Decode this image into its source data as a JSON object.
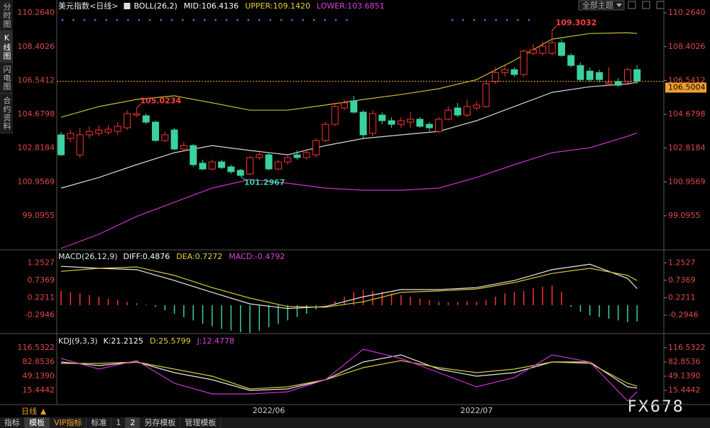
{
  "ui": {
    "side_tabs": [
      "分时图",
      "K线图",
      "闪电图",
      "合约资料"
    ],
    "theme_button": "全部主题",
    "period": "日线",
    "toolbar": [
      "指标",
      "模板",
      "VIP指标",
      "标准",
      "1",
      "2",
      "另存模板",
      "管理模板"
    ],
    "watermark": "FX678"
  },
  "chart_data": [
    {
      "type": "candlestick",
      "title": "美元指数<日线>",
      "legend": [
        {
          "text": "BOLL(26,2)",
          "color": "#ffffff"
        },
        {
          "text": "MID:106.4136",
          "color": "#ffffff"
        },
        {
          "text": "UPPER:109.1420",
          "color": "#e8d23a"
        },
        {
          "text": "LOWER:103.6851",
          "color": "#e040e0"
        }
      ],
      "up_color": "#ff3232",
      "down_color": "#3ad2a0",
      "open": [
        103.55,
        103.35,
        102.45,
        103.55,
        103.63,
        103.7,
        103.74,
        103.94,
        104.64,
        104.6,
        104.25,
        103.24,
        103.82,
        102.77,
        102.96,
        101.99,
        101.67,
        102.06,
        101.79,
        101.6,
        101.4,
        102.3,
        102.45,
        101.67,
        102.06,
        102.45,
        102.3,
        102.45,
        103.24,
        104.13,
        105.03,
        105.42,
        104.8,
        103.63,
        104.64,
        104.33,
        104.13,
        104.25,
        104.41,
        104.13,
        103.74,
        104.41,
        105.03,
        104.64,
        105.03,
        105.11,
        106.48,
        106.98,
        107.14,
        106.87,
        108.04,
        108.04,
        108.04,
        108.62,
        107.92,
        107.37,
        107.06,
        106.98,
        106.36,
        106.48,
        106.48,
        107.14
      ],
      "close": [
        102.45,
        103.63,
        103.55,
        103.74,
        103.82,
        103.86,
        104.02,
        104.72,
        104.72,
        104.25,
        103.24,
        103.55,
        102.77,
        102.96,
        101.91,
        101.67,
        102.06,
        101.75,
        101.52,
        101.32,
        102.3,
        102.45,
        101.67,
        102.06,
        102.3,
        102.3,
        102.57,
        103.24,
        104.13,
        105.11,
        105.31,
        104.8,
        103.55,
        104.72,
        104.33,
        104.13,
        104.33,
        104.41,
        104.02,
        103.94,
        104.41,
        104.91,
        104.64,
        105.11,
        105.19,
        106.36,
        106.98,
        107.14,
        106.87,
        108.16,
        108.23,
        108.43,
        108.62,
        107.92,
        107.37,
        106.59,
        106.59,
        106.59,
        106.44,
        106.28,
        107.14,
        106.5
      ],
      "high": [
        103.7,
        103.82,
        103.94,
        104.02,
        104.06,
        104.09,
        104.25,
        104.91,
        105.02,
        104.72,
        104.33,
        103.74,
        103.94,
        103.16,
        103.04,
        102.18,
        102.18,
        102.18,
        101.91,
        101.67,
        102.38,
        102.57,
        102.57,
        102.18,
        102.45,
        102.69,
        102.77,
        103.35,
        104.25,
        105.31,
        105.5,
        105.7,
        104.91,
        104.91,
        104.8,
        104.52,
        104.52,
        104.8,
        104.52,
        104.25,
        104.52,
        105.11,
        105.31,
        105.5,
        105.42,
        106.59,
        107.26,
        107.37,
        107.26,
        108.23,
        108.55,
        108.7,
        109.3,
        108.82,
        108.04,
        107.53,
        107.26,
        107.14,
        107.26,
        106.67,
        107.26,
        107.37
      ],
      "low": [
        102.38,
        103.16,
        102.3,
        103.35,
        103.47,
        103.55,
        103.55,
        103.82,
        104.52,
        104.13,
        103.16,
        103.16,
        102.69,
        102.69,
        101.79,
        101.6,
        101.6,
        101.67,
        101.4,
        101.3,
        101.32,
        102.18,
        101.6,
        101.6,
        101.91,
        102.18,
        102.18,
        102.3,
        103.16,
        104.02,
        104.91,
        104.72,
        103.35,
        103.47,
        104.13,
        103.94,
        103.94,
        103.94,
        103.94,
        103.74,
        103.63,
        104.33,
        104.52,
        104.52,
        104.91,
        105.03,
        106.36,
        106.75,
        106.75,
        106.75,
        107.92,
        107.92,
        107.92,
        107.84,
        107.26,
        106.48,
        106.48,
        106.44,
        106.28,
        106.2,
        106.28,
        106.36
      ],
      "series": [
        {
          "color": "#d8d8d8",
          "x": [
            0,
            4,
            8,
            12,
            16,
            20,
            24,
            28,
            32,
            36,
            40,
            44,
            48,
            52,
            56,
            60,
            61
          ],
          "values": [
            100.62,
            101.2,
            101.91,
            102.57,
            102.96,
            102.69,
            102.45,
            102.96,
            103.35,
            103.55,
            103.74,
            104.33,
            105.11,
            105.89,
            106.2,
            106.36,
            106.44
          ]
        },
        {
          "color": "#c8be30",
          "x": [
            0,
            4,
            8,
            12,
            16,
            20,
            24,
            28,
            32,
            36,
            40,
            44,
            48,
            52,
            56,
            60,
            61
          ],
          "values": [
            104.52,
            105.11,
            105.5,
            105.7,
            105.31,
            104.91,
            104.91,
            105.19,
            105.5,
            105.77,
            106.09,
            106.59,
            107.65,
            108.82,
            109.13,
            109.17,
            109.13
          ]
        },
        {
          "color": "#d030d0",
          "x": [
            0,
            4,
            8,
            12,
            16,
            20,
            24,
            28,
            32,
            36,
            40,
            44,
            48,
            52,
            56,
            60,
            61
          ],
          "values": [
            97.3,
            98.08,
            99.06,
            99.84,
            100.62,
            101.09,
            100.89,
            100.62,
            100.5,
            100.5,
            100.62,
            101.2,
            101.91,
            102.57,
            102.84,
            103.47,
            103.66
          ]
        }
      ],
      "annotations": [
        {
          "index": 8,
          "value": 105.0234
        },
        {
          "index": 19,
          "value": 101.2967
        },
        {
          "index": 52,
          "value": 109.3032
        }
      ],
      "last_price": 106.5004,
      "ylim": [
        97.22,
        110.66
      ],
      "yticks": [
        {
          "value": 110.264,
          "label": "110.2640"
        },
        108.4026,
        106.5412,
        104.6798,
        102.8184,
        100.9569,
        99.0955
      ]
    },
    {
      "type": "bar",
      "title": "MACD(26,12,9)",
      "legend": [
        {
          "text": "DIFF:0.4876",
          "color": "#ffffff"
        },
        {
          "text": "DEA:0.7272",
          "color": "#e8d23a"
        },
        {
          "text": "MACD:-0.4792",
          "color": "#e040e0"
        }
      ],
      "up_color": "#ff3232",
      "down_color": "#3ad2a0",
      "values": [
        0.42,
        0.38,
        0.35,
        0.3,
        0.25,
        0.2,
        0.15,
        0.1,
        0.06,
        0.02,
        -0.05,
        -0.15,
        -0.25,
        -0.35,
        -0.45,
        -0.55,
        -0.62,
        -0.7,
        -0.75,
        -0.8,
        -0.82,
        -0.75,
        -0.65,
        -0.55,
        -0.45,
        -0.35,
        -0.25,
        -0.12,
        0.02,
        0.12,
        0.25,
        0.4,
        0.45,
        0.42,
        0.4,
        0.35,
        0.3,
        0.25,
        0.2,
        0.15,
        0.1,
        0.08,
        0.1,
        0.12,
        0.1,
        0.15,
        0.25,
        0.35,
        0.4,
        0.42,
        0.5,
        0.55,
        0.58,
        0.4,
        -0.05,
        -0.2,
        -0.3,
        -0.35,
        -0.4,
        -0.45,
        -0.5,
        -0.48
      ],
      "series": [
        {
          "color": "#e8e8e8",
          "x": [
            0,
            4,
            8,
            12,
            16,
            20,
            24,
            28,
            32,
            36,
            40,
            44,
            48,
            52,
            56,
            60,
            61
          ],
          "values": [
            1.15,
            1.09,
            1.05,
            0.73,
            0.38,
            0.04,
            -0.1,
            -0.04,
            0.25,
            0.46,
            0.46,
            0.52,
            0.73,
            1.05,
            1.21,
            0.79,
            0.49
          ]
        },
        {
          "color": "#d8c830",
          "x": [
            0,
            4,
            8,
            12,
            16,
            20,
            24,
            28,
            32,
            36,
            40,
            44,
            48,
            52,
            56,
            60,
            61
          ],
          "values": [
            1.0,
            1.09,
            1.13,
            0.88,
            0.52,
            0.21,
            -0.04,
            -0.06,
            0.1,
            0.38,
            0.42,
            0.48,
            0.67,
            0.94,
            1.09,
            0.88,
            0.73
          ]
        }
      ],
      "ylim": [
        -0.84,
        1.51
      ],
      "yticks": [
        1.2527,
        0.7369,
        0.2211,
        -0.2946
      ]
    },
    {
      "type": "line",
      "title": "KDJ(9,3,3)",
      "legend": [
        {
          "text": "K:21.2125",
          "color": "#ffffff"
        },
        {
          "text": "D:25.5799",
          "color": "#e8d23a"
        },
        {
          "text": "J:12.4778",
          "color": "#e040e0"
        }
      ],
      "categories": [
        null,
        null,
        null,
        null,
        null,
        null,
        null,
        null,
        null,
        null,
        null,
        null,
        null,
        null,
        null,
        null,
        null,
        null,
        null,
        null,
        null,
        null,
        "2022/06",
        null,
        null,
        null,
        null,
        null,
        null,
        null,
        null,
        null,
        null,
        null,
        null,
        null,
        null,
        null,
        null,
        null,
        null,
        null,
        null,
        null,
        "2022/07",
        null,
        null,
        null,
        null,
        null,
        null,
        null,
        null,
        null,
        null,
        null,
        null,
        null,
        null,
        null,
        null,
        null
      ],
      "series": [
        {
          "color": "#e8e8e8",
          "x": [
            0,
            4,
            8,
            12,
            16,
            20,
            24,
            28,
            32,
            36,
            40,
            44,
            48,
            52,
            56,
            60,
            61
          ],
          "values": [
            82.83,
            74.4,
            82.83,
            57.56,
            40.7,
            15.4,
            18.8,
            40.7,
            82.83,
            99.68,
            65.98,
            49.13,
            57.56,
            82.83,
            82.83,
            23.85,
            21.21
          ]
        },
        {
          "color": "#d8c830",
          "x": [
            0,
            4,
            8,
            12,
            16,
            20,
            24,
            28,
            32,
            36,
            40,
            44,
            48,
            52,
            56,
            60,
            61
          ],
          "values": [
            79.46,
            79.46,
            82.83,
            65.98,
            49.13,
            18.8,
            23.85,
            40.7,
            69.35,
            86.2,
            69.35,
            57.56,
            65.98,
            82.83,
            79.46,
            32.28,
            25.58
          ]
        },
        {
          "color": "#d030d0",
          "x": [
            0,
            4,
            8,
            12,
            16,
            20,
            24,
            28,
            32,
            36,
            40,
            44,
            48,
            52,
            56,
            60,
            61
          ],
          "values": [
            91.25,
            65.98,
            86.2,
            32.28,
            7.0,
            7.0,
            12.06,
            40.7,
            113.16,
            91.25,
            57.56,
            23.85,
            45.76,
            99.68,
            82.83,
            -9.85,
            12.48
          ]
        }
      ],
      "ylim": [
        -18.3,
        143.5
      ],
      "yticks": [
        116.5322,
        82.8536,
        {
          "value": 49.139,
          "label": "49.1390"
        },
        15.4442
      ]
    }
  ]
}
